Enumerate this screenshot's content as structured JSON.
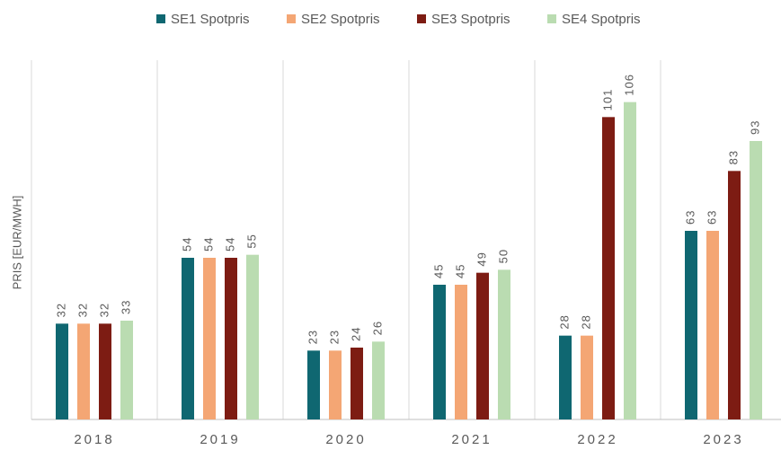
{
  "chart_data": {
    "type": "bar",
    "y_label": "PRIS [EUR/MWH]",
    "categories": [
      "2018",
      "2019",
      "2020",
      "2021",
      "2022",
      "2023"
    ],
    "series": [
      {
        "name": "SE1 Spotpris",
        "color": "#0f6771",
        "values": [
          32,
          54,
          23,
          45,
          28,
          63
        ]
      },
      {
        "name": "SE2 Spotpris",
        "color": "#f4a674",
        "values": [
          32,
          54,
          23,
          45,
          28,
          63
        ]
      },
      {
        "name": "SE3 Spotpris",
        "color": "#7d1c13",
        "values": [
          32,
          54,
          24,
          49,
          101,
          83
        ]
      },
      {
        "name": "SE4 Spotpris",
        "color": "#badcb1",
        "values": [
          33,
          55,
          26,
          50,
          106,
          93
        ]
      }
    ],
    "ylim": [
      0,
      120
    ],
    "yticks": [],
    "legend": "top"
  }
}
